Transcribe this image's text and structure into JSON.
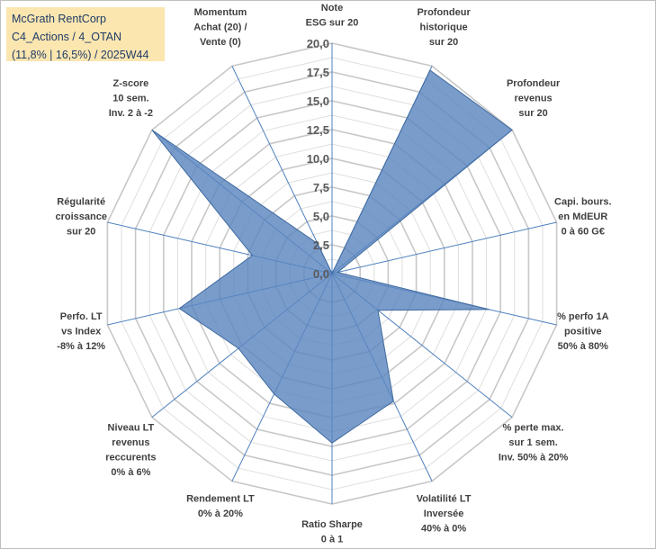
{
  "info_box": {
    "line1": "McGrath RentCorp",
    "line2": "C4_Actions / 4_OTAN",
    "line3": "(11,8% | 16,5%) / 2025W44"
  },
  "chart_data": {
    "type": "radar",
    "title": "",
    "rlim": [
      0,
      20
    ],
    "ticks": [
      "0,0",
      "2,5",
      "5,0",
      "7,5",
      "10,0",
      "12,5",
      "15,0",
      "17,5",
      "20,0"
    ],
    "tick_values": [
      0,
      2.5,
      5,
      7.5,
      10,
      12.5,
      15,
      17.5,
      20
    ],
    "grid": true,
    "fill_color": "#5b86bf",
    "fill_opacity": 0.82,
    "axes": [
      {
        "label": [
          "Note",
          "ESG sur 20"
        ],
        "value": 0
      },
      {
        "label": [
          "Profondeur",
          "historique",
          "sur 20"
        ],
        "value": 19.6
      },
      {
        "label": [
          "Profondeur",
          "revenus",
          "sur 20"
        ],
        "value": 20
      },
      {
        "label": [
          "Capi. bours.",
          "en MdEUR",
          "0 à 60 G€"
        ],
        "value": 0.5
      },
      {
        "label": [
          "% perfo 1A",
          "positive",
          "50% à 80%"
        ],
        "value": 14
      },
      {
        "label": [
          "% perte max.",
          "sur 1 sem.",
          "Inv. 50% à 20%"
        ],
        "value": 5.1
      },
      {
        "label": [
          "Volatilité LT",
          "Inversée",
          "40% à 0%"
        ],
        "value": 12.3
      },
      {
        "label": [
          "Ratio Sharpe",
          "0 à 1"
        ],
        "value": 14.7
      },
      {
        "label": [
          "Rendement LT",
          "0% à 20%"
        ],
        "value": 11.6
      },
      {
        "label": [
          "Niveau LT",
          "revenus",
          "reccurents",
          "0% à 6%"
        ],
        "value": 10.4
      },
      {
        "label": [
          "Perfo. LT",
          "vs Index",
          "-8% à 12%"
        ],
        "value": 13.6
      },
      {
        "label": [
          "Régularité",
          "croissance",
          "sur 20"
        ],
        "value": 7.1
      },
      {
        "label": [
          "Z-score",
          "10 sem.",
          "Inv. 2 à -2"
        ],
        "value": 20
      },
      {
        "label": [
          "Momentum",
          "Achat (20) /",
          "Vente (0)"
        ],
        "value": 2.9
      }
    ]
  }
}
